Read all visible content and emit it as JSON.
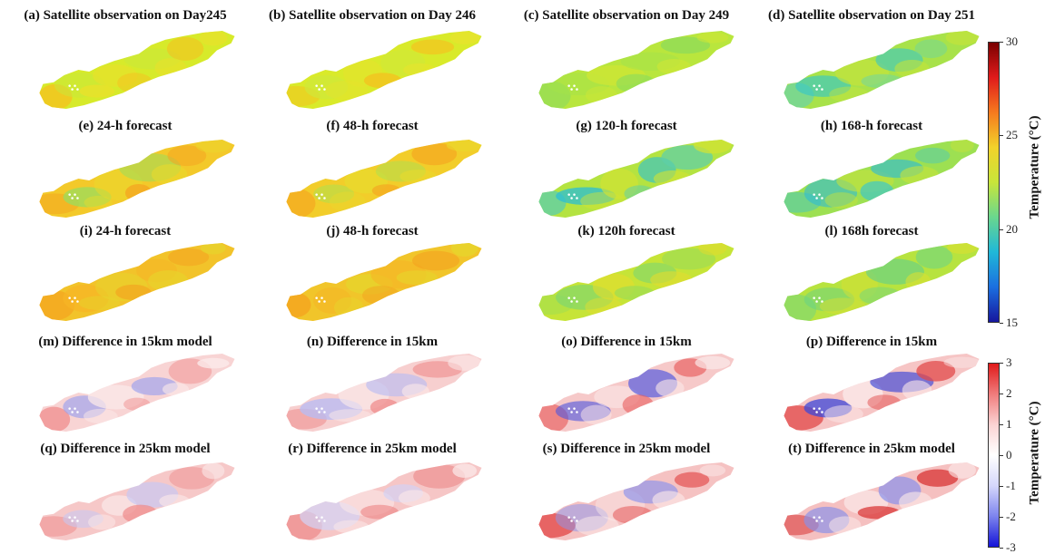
{
  "panels": [
    {
      "label": "(a) Satellite observation on Day245",
      "kind": "temp",
      "base": "#d7ea2a",
      "accents": [
        "#f4c21f",
        "#e9e12a",
        "#c9e83a"
      ]
    },
    {
      "label": "(b) Satellite observation on Day 246",
      "kind": "temp",
      "base": "#d9ea2a",
      "accents": [
        "#f4c21f",
        "#e7e32c",
        "#cfe83a"
      ]
    },
    {
      "label": "(c) Satellite observation on Day 249",
      "kind": "temp",
      "base": "#b9e63d",
      "accents": [
        "#8fdc5a",
        "#cfe635",
        "#a6e24a"
      ]
    },
    {
      "label": "(d) Satellite observation on Day 251",
      "kind": "temp",
      "base": "#a8e24a",
      "accents": [
        "#6fd6a0",
        "#c4e43a",
        "#35c6c9"
      ]
    },
    {
      "label": "(e) 24-h forecast",
      "kind": "temp",
      "base": "#f3c92a",
      "accents": [
        "#f4a521",
        "#e9d92c",
        "#9fdc5a"
      ]
    },
    {
      "label": "(f) 48-h forecast",
      "kind": "temp",
      "base": "#f2cd2a",
      "accents": [
        "#f4a521",
        "#e9d92c",
        "#b2df4c"
      ]
    },
    {
      "label": "(g) 120-h forecast",
      "kind": "temp",
      "base": "#b4e341",
      "accents": [
        "#5ecfa9",
        "#d2e332",
        "#2cbfd3"
      ]
    },
    {
      "label": "(h) 168-h forecast",
      "kind": "temp",
      "base": "#9de052",
      "accents": [
        "#47c9bd",
        "#c6e23a",
        "#2ab9da"
      ]
    },
    {
      "label": "(i) 24-h forecast",
      "kind": "temp",
      "base": "#f2c32a",
      "accents": [
        "#f4a21f",
        "#e6d62c",
        "#f6b525"
      ]
    },
    {
      "label": "(j) 48-h forecast",
      "kind": "temp",
      "base": "#f1c52a",
      "accents": [
        "#f4a21f",
        "#e6d62c",
        "#f6b525"
      ]
    },
    {
      "label": "(k) 120h forecast",
      "kind": "temp",
      "base": "#c6e437",
      "accents": [
        "#9fdd52",
        "#e3dc2e",
        "#7fd76e"
      ]
    },
    {
      "label": "(l) 168h forecast",
      "kind": "temp",
      "base": "#b7e33f",
      "accents": [
        "#7fd872",
        "#d8df32",
        "#63d08a"
      ]
    },
    {
      "label": "(m) Difference in 15km model",
      "kind": "diff",
      "base": "#f8d4d4",
      "accents": [
        "#f08f8f",
        "#fbeaea",
        "#9aa0ee"
      ]
    },
    {
      "label": "(n) Difference in 15km",
      "kind": "diff",
      "base": "#f7cfcf",
      "accents": [
        "#ee8a8a",
        "#fbeaea",
        "#b9bcf2"
      ]
    },
    {
      "label": "(o) Difference in 15km",
      "kind": "diff",
      "base": "#f6c9c9",
      "accents": [
        "#e85f5f",
        "#fbeaea",
        "#4c55e0"
      ]
    },
    {
      "label": "(p) Difference in 15km",
      "kind": "diff",
      "base": "#f6c5c5",
      "accents": [
        "#e24a4a",
        "#fbeaea",
        "#3d47d8"
      ]
    },
    {
      "label": "(q) Difference in 25km model",
      "kind": "diff",
      "base": "#f6c8c8",
      "accents": [
        "#ee8c8c",
        "#fbeaea",
        "#c6c8f4"
      ]
    },
    {
      "label": "(r) Difference in 25km model",
      "kind": "diff",
      "base": "#f6c6c6",
      "accents": [
        "#ec8484",
        "#fbeaea",
        "#d2d3f6"
      ]
    },
    {
      "label": "(s) Difference in 25km model",
      "kind": "diff",
      "base": "#f5c2c2",
      "accents": [
        "#e24848",
        "#fbeaea",
        "#8e95ec"
      ]
    },
    {
      "label": "(t) Difference in 25km model",
      "kind": "diff",
      "base": "#f5c0c0",
      "accents": [
        "#d93030",
        "#fbeaea",
        "#8890ea"
      ]
    }
  ],
  "colorbars": [
    {
      "name": "temperature",
      "label": "Temperature (°C)",
      "ticks": [
        "30",
        "25",
        "20",
        "15"
      ],
      "tick_values": [
        30,
        25,
        20,
        15
      ],
      "range": [
        15,
        30
      ],
      "stops": [
        "#7a0000",
        "#e01b1b",
        "#f67a1e",
        "#f2d22a",
        "#c8e53a",
        "#6ad78e",
        "#20b8d8",
        "#1b6fe0",
        "#16179e"
      ]
    },
    {
      "name": "difference",
      "label": "Temperature (°C)",
      "ticks": [
        "3",
        "2",
        "1",
        "0",
        "-1",
        "-2",
        "-3"
      ],
      "tick_values": [
        3,
        2,
        1,
        0,
        -1,
        -2,
        -3
      ],
      "range": [
        -3,
        3
      ],
      "stops": [
        "#e01a1a",
        "#f07c7c",
        "#fbd3d3",
        "#ffffff",
        "#d5d7fb",
        "#7d84ee",
        "#1414d8"
      ]
    }
  ]
}
